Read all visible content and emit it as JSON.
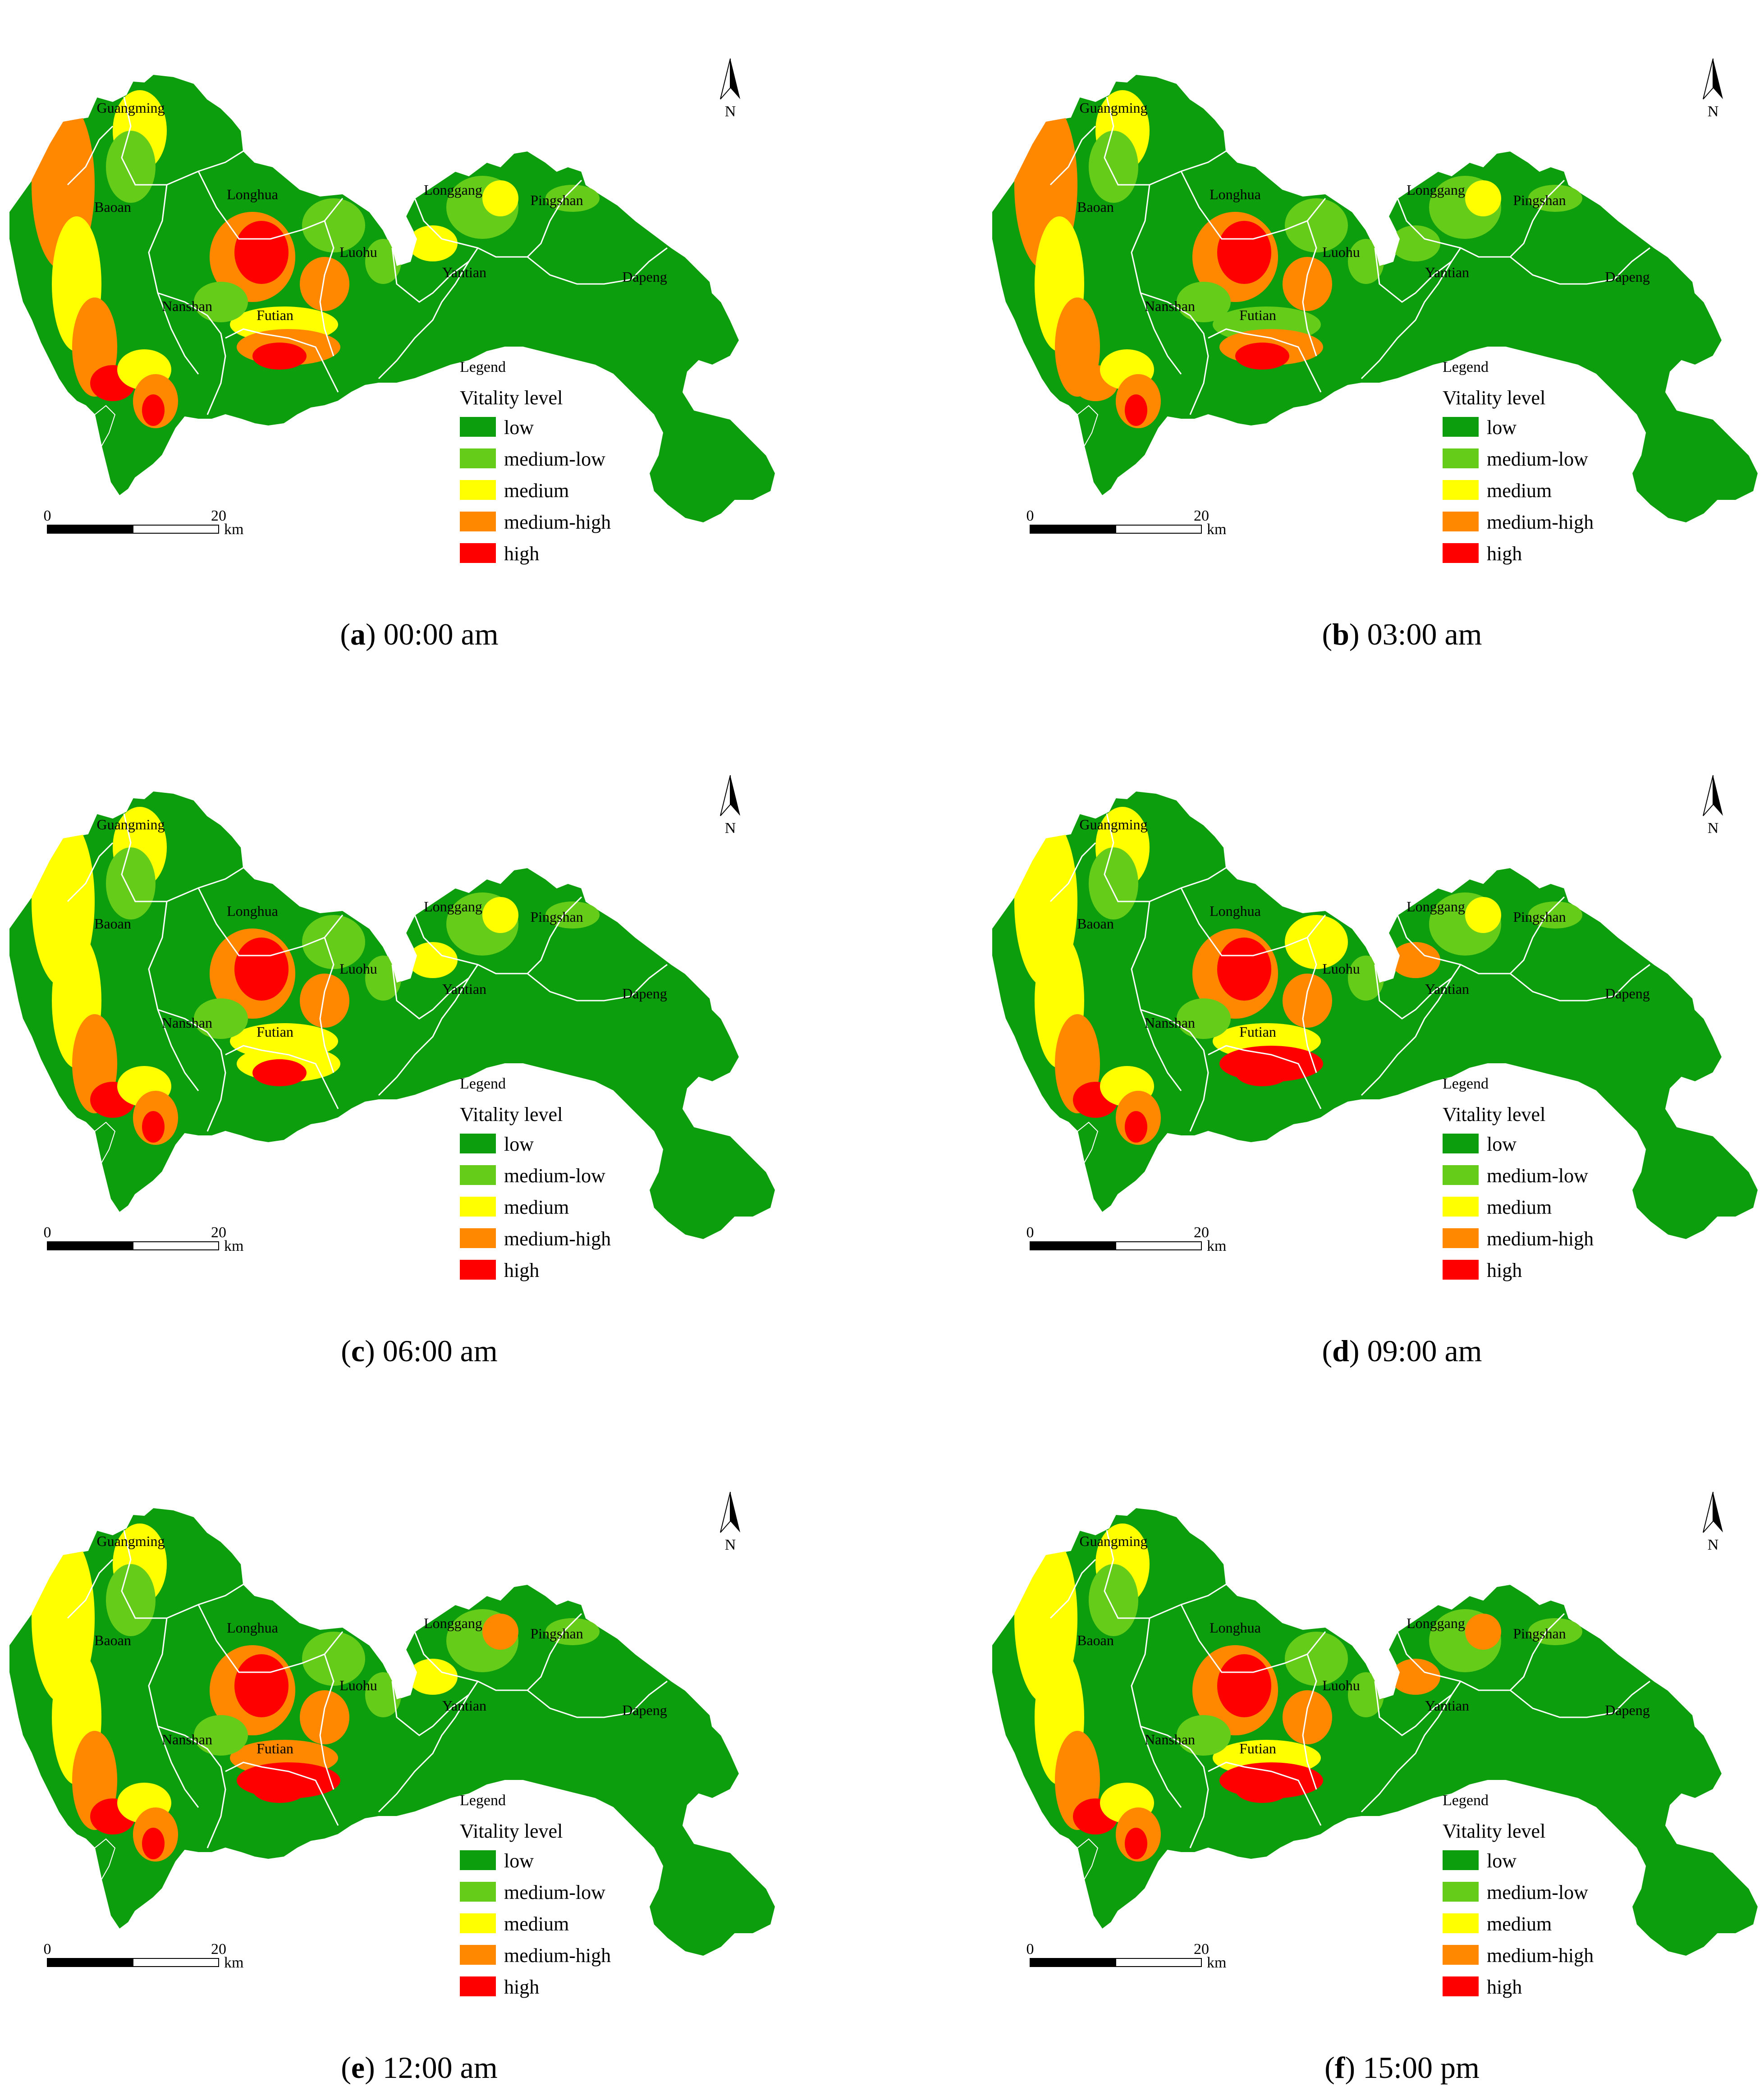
{
  "legend": {
    "title": "Legend",
    "subtitle": "Vitality level",
    "items": [
      {
        "label": "low",
        "color": "#0d9e0d"
      },
      {
        "label": "medium-low",
        "color": "#66cc1a"
      },
      {
        "label": "medium",
        "color": "#ffff00"
      },
      {
        "label": "medium-high",
        "color": "#ff8800"
      },
      {
        "label": "high",
        "color": "#ff0000"
      }
    ]
  },
  "scale_bar": {
    "start": "0",
    "end": "20",
    "unit": "km"
  },
  "north_arrow": {
    "label": "N"
  },
  "districts": [
    "Guangming",
    "Longhua",
    "Baoan",
    "Longgang",
    "Pingshan",
    "Yantian",
    "Luohu",
    "Nanshan",
    "Futian",
    "Dapeng"
  ],
  "panels": [
    {
      "letter": "a",
      "time": "00:00 am"
    },
    {
      "letter": "b",
      "time": "03:00 am"
    },
    {
      "letter": "c",
      "time": "06:00 am"
    },
    {
      "letter": "d",
      "time": "09:00 am"
    },
    {
      "letter": "e",
      "time": "12:00 am"
    },
    {
      "letter": "f",
      "time": "15:00 pm"
    }
  ]
}
